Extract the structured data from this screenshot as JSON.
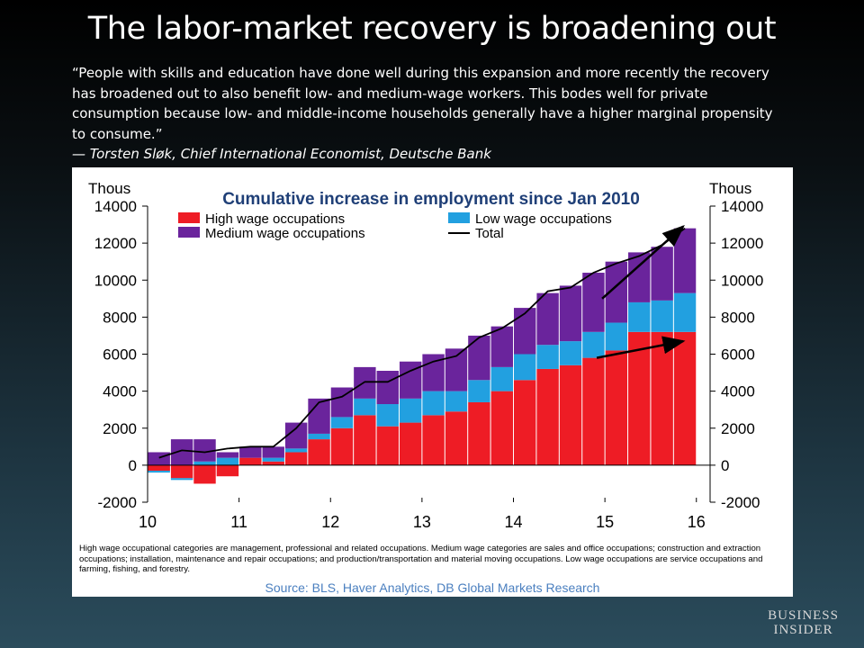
{
  "slide": {
    "title": "The labor-market recovery is broadening out",
    "quote_lines": [
      "“People with skills and education have done well during this expansion and more recently the recovery",
      "has broadened out to also benefit low- and medium-wage workers. This bodes well for private",
      "consumption because low- and middle-income households generally have a higher marginal propensity",
      "to consume.”"
    ],
    "attribution": "— Torsten Sløk, Chief International Economist, Deutsche Bank",
    "logo": [
      "BUSINESS",
      "INSIDER"
    ]
  },
  "chart_data": {
    "type": "bar",
    "title": "Cumulative increase in employment since Jan 2010",
    "ylabel_left": "Thous",
    "ylabel_right": "Thous",
    "ylim": [
      -2000,
      14000
    ],
    "yticks": [
      -2000,
      0,
      2000,
      4000,
      6000,
      8000,
      10000,
      12000,
      14000
    ],
    "x_tick_labels": [
      "10",
      "11",
      "12",
      "13",
      "14",
      "15",
      "16"
    ],
    "x_tick_years": [
      2010,
      2011,
      2012,
      2013,
      2014,
      2015,
      2016
    ],
    "stacked": true,
    "legend": {
      "placement": "top",
      "entries": [
        {
          "label": "High wage occupations",
          "color": "#ee1c25"
        },
        {
          "label": "Low wage occupations",
          "color": "#22a0e0"
        },
        {
          "label": "Medium wage occupations",
          "color": "#6a249c"
        },
        {
          "label": "Total",
          "color": "#000000"
        }
      ]
    },
    "grid": false,
    "x_period": "quarterly, Q1 2010 – Q4 2015",
    "series": [
      {
        "name": "High wage occupations",
        "color": "#ee1c25",
        "values": [
          -300,
          -700,
          -1000,
          -600,
          400,
          200,
          700,
          1400,
          2000,
          2700,
          2100,
          2300,
          2700,
          2900,
          3400,
          4000,
          4600,
          5200,
          5400,
          5800,
          6200,
          7200,
          7200,
          7200
        ]
      },
      {
        "name": "Low wage occupations",
        "color": "#22a0e0",
        "values": [
          -100,
          -100,
          200,
          400,
          0,
          200,
          200,
          300,
          600,
          900,
          1200,
          1300,
          1300,
          1100,
          1200,
          1300,
          1400,
          1300,
          1300,
          1400,
          1500,
          1600,
          1700,
          2100
        ]
      },
      {
        "name": "Medium wage occupations",
        "color": "#6a249c",
        "values": [
          700,
          1400,
          1200,
          300,
          600,
          600,
          1400,
          1900,
          1600,
          1700,
          1800,
          2000,
          2000,
          2300,
          2400,
          2200,
          2500,
          2800,
          3000,
          3200,
          3300,
          2700,
          2900,
          3500
        ]
      },
      {
        "name": "Total",
        "color": "#000000",
        "type": "line",
        "values": [
          400,
          800,
          700,
          900,
          1000,
          1000,
          2000,
          3400,
          3700,
          4500,
          4500,
          5100,
          5600,
          5900,
          6900,
          7400,
          8200,
          9400,
          9600,
          10400,
          10900,
          11300,
          11900,
          12800
        ]
      }
    ],
    "annotations": [
      "arrow toward rising Total (right edge)",
      "arrow toward rising High wage occupations (right edge)"
    ]
  },
  "chart_footnote": "High wage occupational categories are management, professional and related occupations. Medium wage categories are sales and office occupations; construction and extraction occupations; installation, maintenance and repair occupations; and production/transportation and material moving occupations. Low wage occupations are service occupations and farming, fishing, and forestry.",
  "chart_source": "Source: BLS, Haver Analytics, DB Global Markets Research"
}
